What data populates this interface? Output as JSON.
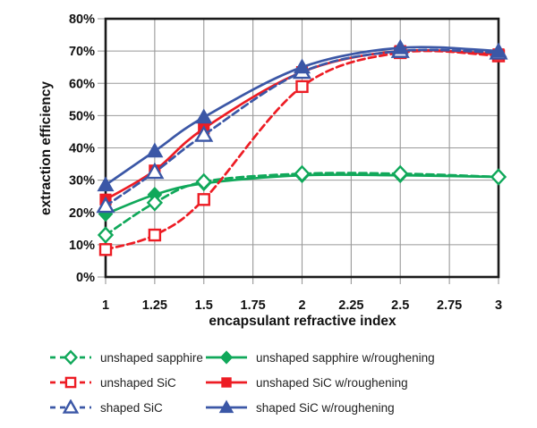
{
  "chart_data": {
    "type": "line",
    "title": "",
    "xlabel": "encapsulant refractive index",
    "ylabel": "extraction efficiency",
    "x": [
      1,
      1.25,
      1.5,
      2,
      2.5,
      3
    ],
    "xlim": [
      1,
      3
    ],
    "ylim": [
      0,
      80
    ],
    "x_ticks": [
      1,
      1.25,
      1.5,
      1.75,
      2,
      2.25,
      2.5,
      2.75,
      3
    ],
    "x_tick_labels": [
      "1",
      "1.25",
      "1.5",
      "1.75",
      "2",
      "2.25",
      "2.5",
      "2.75",
      "3"
    ],
    "y_ticks": [
      0,
      10,
      20,
      30,
      40,
      50,
      60,
      70,
      80
    ],
    "y_tick_labels": [
      "0%",
      "10%",
      "20%",
      "30%",
      "40%",
      "50%",
      "60%",
      "70%",
      "80%"
    ],
    "grid": true,
    "legend_position": "bottom",
    "series": [
      {
        "name": "unshaped sapphire w/roughening",
        "color": "#10a85a",
        "dash": "solid",
        "marker": "diamond",
        "fill": "filled",
        "values": [
          19.5,
          25.5,
          29,
          31.5,
          31.5,
          31
        ]
      },
      {
        "name": "unshaped sapphire",
        "color": "#10a85a",
        "dash": "dashed",
        "marker": "diamond",
        "fill": "open",
        "values": [
          13,
          23,
          29.5,
          32,
          32,
          31
        ]
      },
      {
        "name": "unshaped SiC",
        "color": "#ed1c24",
        "dash": "dashed",
        "marker": "square",
        "fill": "open",
        "values": [
          8.5,
          13,
          24,
          59,
          69.5,
          68.5
        ]
      },
      {
        "name": "unshaped SiC w/roughening",
        "color": "#ed1c24",
        "dash": "solid",
        "marker": "square",
        "fill": "filled",
        "values": [
          24,
          33,
          46,
          63.5,
          70,
          69
        ]
      },
      {
        "name": "shaped SiC",
        "color": "#3b57a6",
        "dash": "dashed",
        "marker": "triangle",
        "fill": "open",
        "values": [
          22,
          32.5,
          44,
          63.5,
          70,
          69.5
        ]
      },
      {
        "name": "shaped SiC w/roughening",
        "color": "#3b57a6",
        "dash": "solid",
        "marker": "triangle",
        "fill": "filled",
        "values": [
          28.5,
          39,
          49.5,
          65,
          71,
          70
        ]
      }
    ],
    "legend_rows": [
      [
        1,
        0
      ],
      [
        2,
        3
      ],
      [
        4,
        5
      ]
    ],
    "colors": {
      "grid": "#999999",
      "axis_border": "#1a1a1a",
      "tick_text": "#111111",
      "background": "#ffffff"
    }
  }
}
